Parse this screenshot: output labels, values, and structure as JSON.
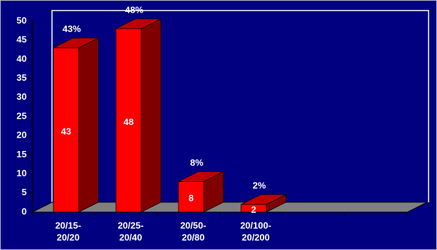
{
  "chart_data": {
    "type": "bar3d",
    "categories": [
      [
        "20/15-",
        "20/20"
      ],
      [
        "20/25-",
        "20/40"
      ],
      [
        "20/50-",
        "20/80"
      ],
      [
        "20/100-",
        "20/200"
      ]
    ],
    "values": [
      43,
      48,
      8,
      2
    ],
    "value_labels": [
      "43%",
      "48%",
      "8%",
      "2%"
    ],
    "color": "#ff0000",
    "ylim": [
      0,
      50
    ],
    "yticks": [
      0,
      5,
      10,
      15,
      20,
      25,
      30,
      35,
      40,
      45,
      50
    ]
  }
}
